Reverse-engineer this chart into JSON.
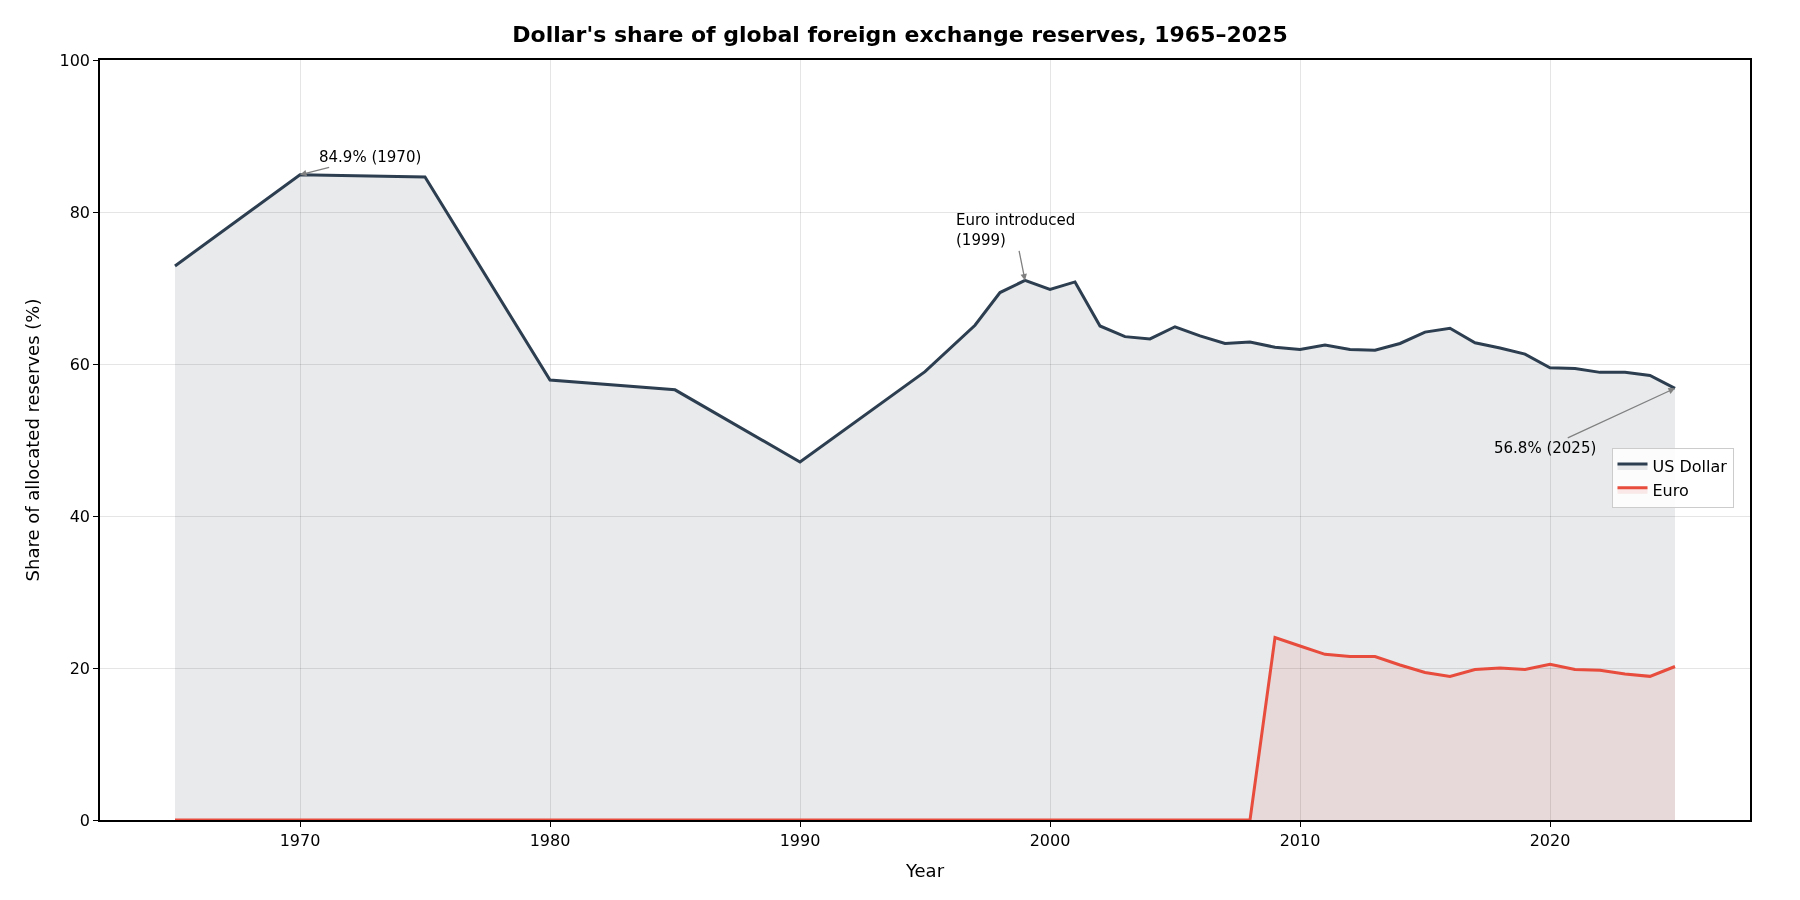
{
  "chart_data": {
    "type": "area",
    "title": "Dollar's share of global foreign exchange reserves, 1965–2025",
    "xlabel": "Year",
    "ylabel": "Share of allocated reserves (%)",
    "series": [
      {
        "name": "US Dollar",
        "color": "#2c3e50",
        "x": [
          1965,
          1970,
          1975,
          1980,
          1985,
          1990,
          1995,
          1997,
          1998,
          1999,
          2000,
          2001,
          2002,
          2003,
          2004,
          2005,
          2006,
          2007,
          2008,
          2009,
          2010,
          2011,
          2012,
          2013,
          2014,
          2015,
          2016,
          2017,
          2018,
          2019,
          2020,
          2021,
          2022,
          2023,
          2024,
          2025
        ],
        "values": [
          72.9,
          84.9,
          84.6,
          57.9,
          56.6,
          47.1,
          59.0,
          65.1,
          69.4,
          71.0,
          69.8,
          70.8,
          65.0,
          63.6,
          63.3,
          64.9,
          63.7,
          62.7,
          62.9,
          62.2,
          61.9,
          62.5,
          61.9,
          61.8,
          62.7,
          64.2,
          64.7,
          62.8,
          62.1,
          61.3,
          59.5,
          59.4,
          58.9,
          58.9,
          58.5,
          56.8
        ]
      },
      {
        "name": "Euro",
        "color": "#e74c3c",
        "x": [
          1965,
          2008,
          2009,
          2010,
          2011,
          2012,
          2013,
          2014,
          2015,
          2016,
          2017,
          2018,
          2019,
          2020,
          2021,
          2022,
          2023,
          2024,
          2025
        ],
        "values": [
          0,
          0,
          24.0,
          22.9,
          21.8,
          21.5,
          21.5,
          20.4,
          19.4,
          18.9,
          19.8,
          20.0,
          19.8,
          20.5,
          19.8,
          19.7,
          19.2,
          18.9,
          20.2
        ]
      }
    ],
    "annotations": [
      {
        "text": "84.9% (1970)",
        "x": 1970,
        "y": 84.9
      },
      {
        "text": "Euro introduced\n(1999)",
        "x": 1999,
        "y": 71.0
      },
      {
        "text": "56.8% (2025)",
        "x": 2025,
        "y": 56.8
      }
    ],
    "xlim": [
      1962,
      2028
    ],
    "xticks": [
      1970,
      1980,
      1990,
      2000,
      2010,
      2020
    ],
    "ylim": [
      0,
      100
    ],
    "yticks": [
      0,
      20,
      40,
      60,
      80,
      100
    ],
    "grid": true,
    "legend": "right"
  }
}
